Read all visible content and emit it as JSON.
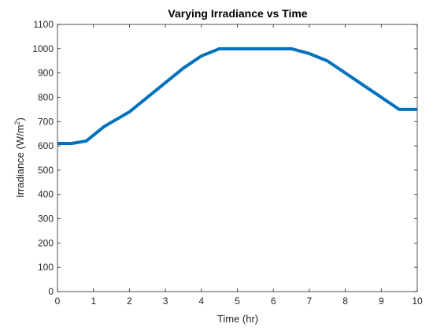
{
  "chart_data": {
    "type": "line",
    "title": "Varying Irradiance vs Time",
    "xlabel": "Time (hr)",
    "ylabel_main": "Irradiance (W/m",
    "ylabel_sup": "2",
    "ylabel_close": ")",
    "xlim": [
      0,
      10
    ],
    "ylim": [
      0,
      1100
    ],
    "xticks": [
      0,
      1,
      2,
      3,
      4,
      5,
      6,
      7,
      8,
      9,
      10
    ],
    "yticks": [
      0,
      100,
      200,
      300,
      400,
      500,
      600,
      700,
      800,
      900,
      1000,
      1100
    ],
    "grid": false,
    "legend": "none",
    "series": [
      {
        "color": "#0072bd",
        "x": [
          0,
          0.4,
          0.8,
          1.3,
          2,
          2.5,
          3,
          3.5,
          4,
          4.5,
          5,
          5.5,
          6,
          6.5,
          7,
          7.5,
          8,
          8.5,
          9,
          9.5,
          10
        ],
        "y": [
          610,
          610,
          620,
          680,
          740,
          800,
          860,
          920,
          970,
          1000,
          1000,
          1000,
          1000,
          1000,
          980,
          950,
          900,
          850,
          800,
          750,
          750
        ]
      }
    ]
  }
}
